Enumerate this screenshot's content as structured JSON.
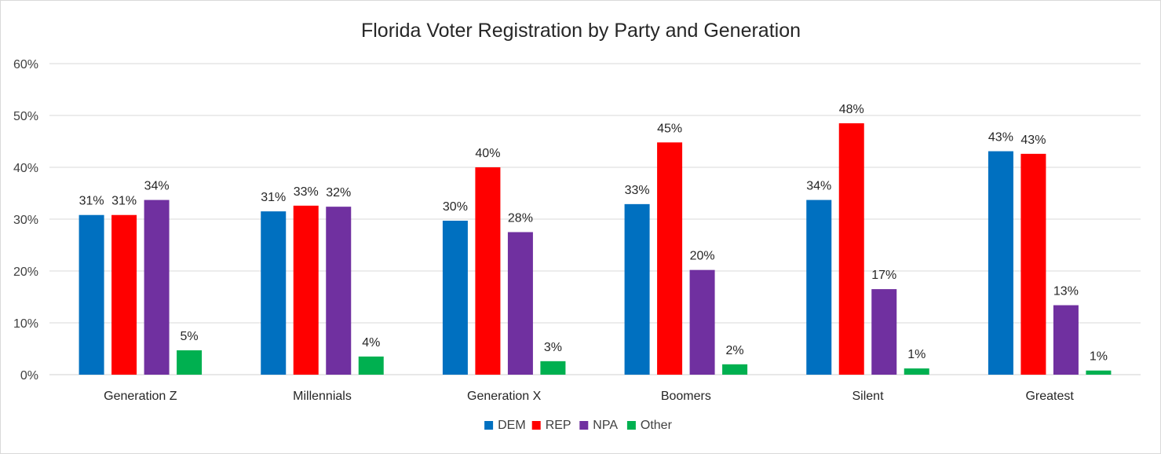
{
  "chart_data": {
    "type": "bar",
    "title": "Florida Voter Registration by Party and Generation",
    "xlabel": "",
    "ylabel": "",
    "ylim": [
      0,
      0.6
    ],
    "yticks": [
      0,
      0.1,
      0.2,
      0.3,
      0.4,
      0.5,
      0.6
    ],
    "ytick_labels": [
      "0%",
      "10%",
      "20%",
      "30%",
      "40%",
      "50%",
      "60%"
    ],
    "grid": true,
    "legend_position": "bottom",
    "categories": [
      "Generation Z",
      "Millennials",
      "Generation X",
      "Boomers",
      "Silent",
      "Greatest"
    ],
    "series": [
      {
        "name": "DEM",
        "color": "#0070c0",
        "values": [
          0.308,
          0.315,
          0.297,
          0.329,
          0.337,
          0.431
        ],
        "labels": [
          "31%",
          "31%",
          "30%",
          "33%",
          "34%",
          "43%"
        ]
      },
      {
        "name": "REP",
        "color": "#ff0000",
        "values": [
          0.308,
          0.326,
          0.4,
          0.448,
          0.485,
          0.426
        ],
        "labels": [
          "31%",
          "33%",
          "40%",
          "45%",
          "48%",
          "43%"
        ]
      },
      {
        "name": "NPA",
        "color": "#7030a0",
        "values": [
          0.337,
          0.324,
          0.275,
          0.202,
          0.165,
          0.134
        ],
        "labels": [
          "34%",
          "32%",
          "28%",
          "20%",
          "17%",
          "13%"
        ]
      },
      {
        "name": "Other",
        "color": "#00b050",
        "values": [
          0.047,
          0.035,
          0.026,
          0.02,
          0.012,
          0.008
        ],
        "labels": [
          "5%",
          "4%",
          "3%",
          "2%",
          "1%",
          "1%"
        ]
      }
    ]
  }
}
